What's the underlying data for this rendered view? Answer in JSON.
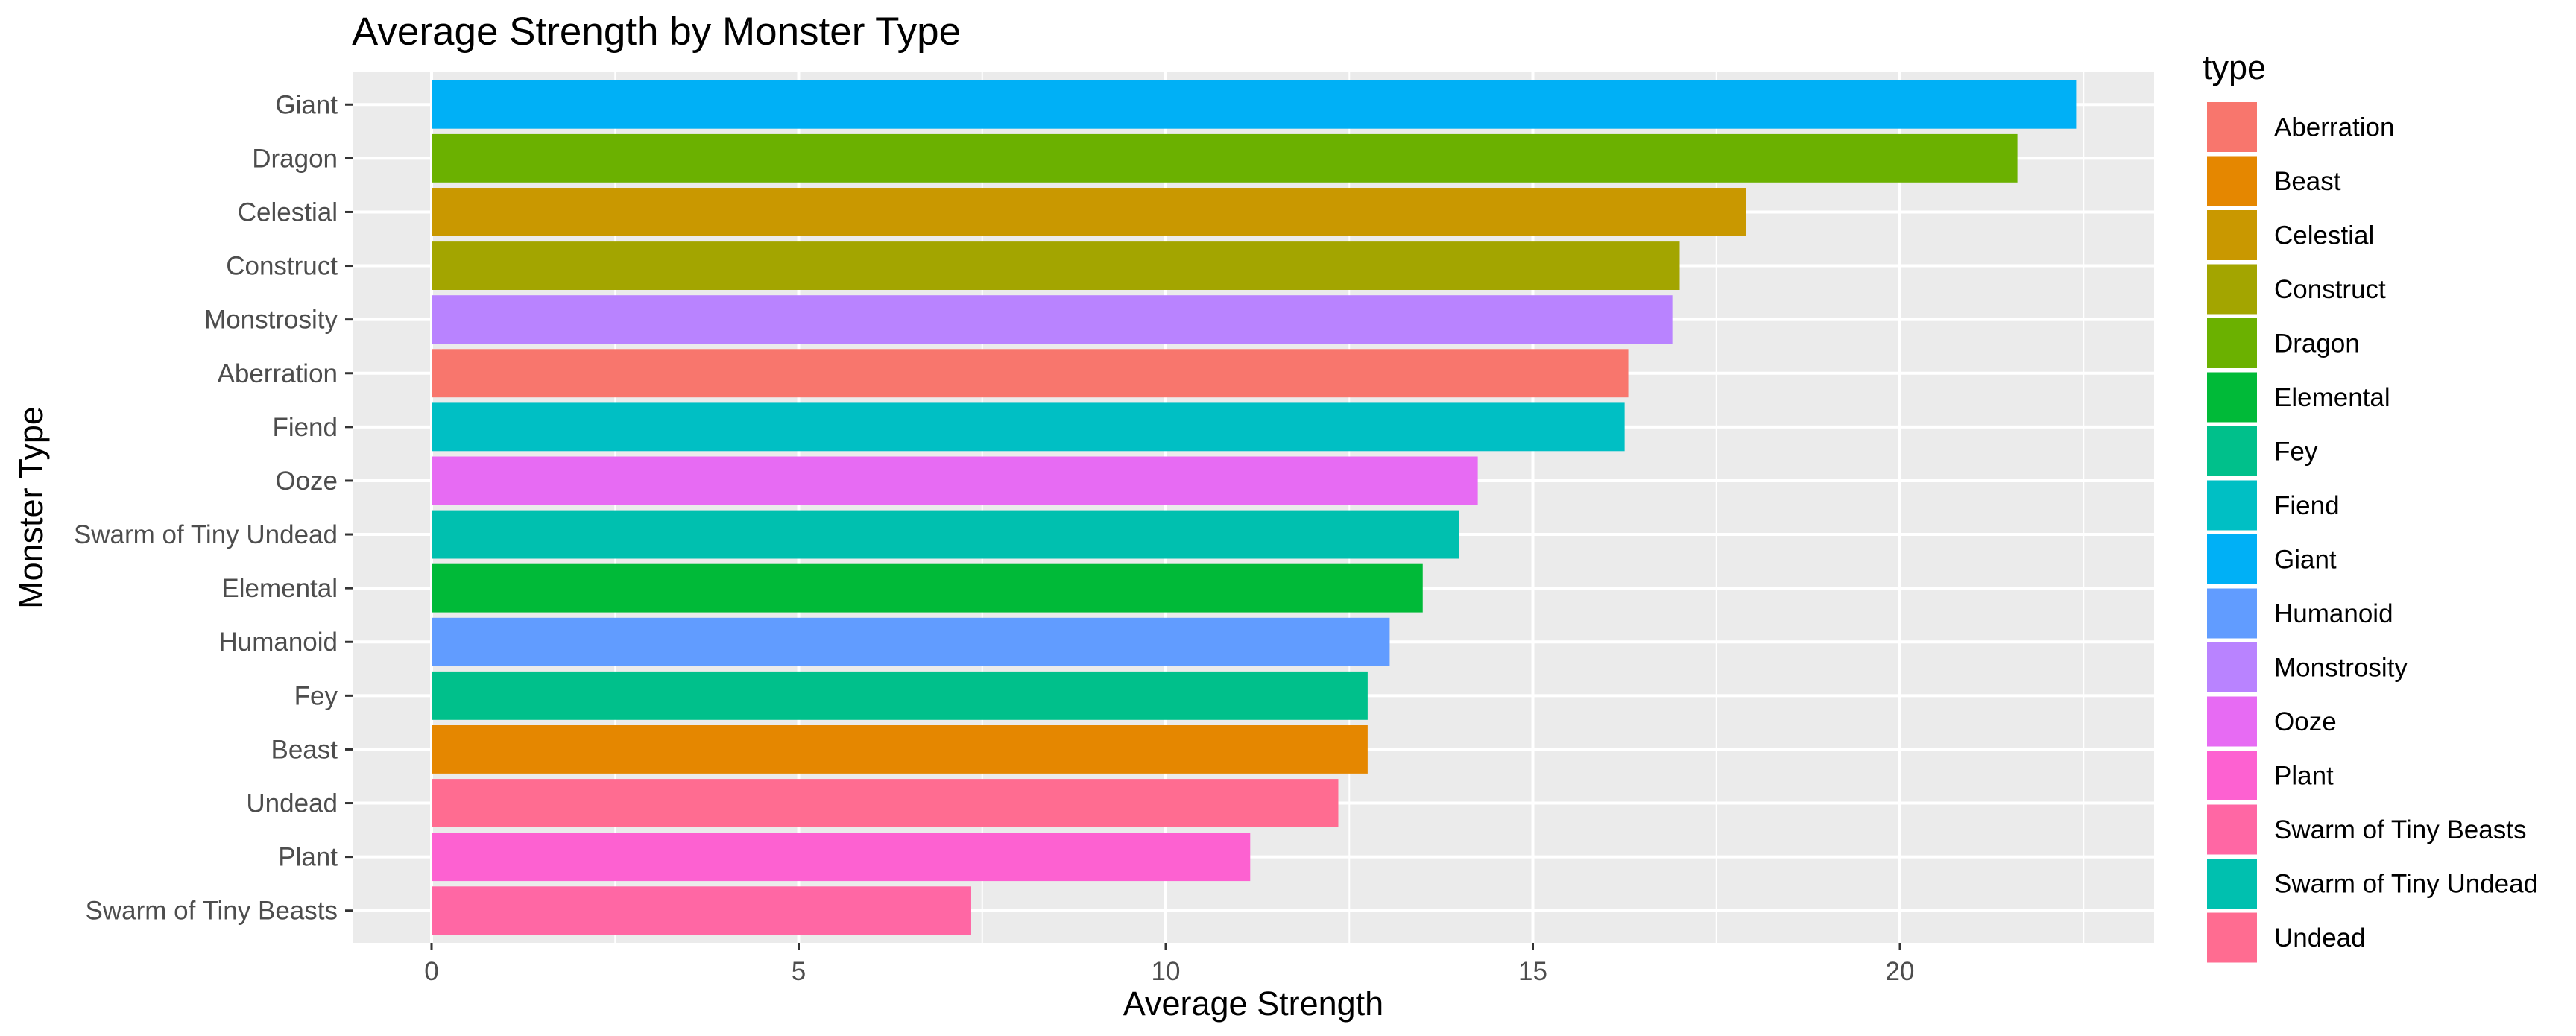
{
  "chart_data": {
    "type": "bar",
    "orientation": "horizontal",
    "title": "Average Strength by Monster Type",
    "xlabel": "Average Strength",
    "ylabel": "Monster Type",
    "xlim": [
      0,
      23.5
    ],
    "x_ticks": [
      0,
      5,
      10,
      15,
      20
    ],
    "grid": true,
    "legend_title": "type",
    "legend_position": "right",
    "categories": [
      "Giant",
      "Dragon",
      "Celestial",
      "Construct",
      "Monstrosity",
      "Aberration",
      "Fiend",
      "Ooze",
      "Swarm of Tiny Undead",
      "Elemental",
      "Humanoid",
      "Fey",
      "Beast",
      "Undead",
      "Plant",
      "Swarm of Tiny Beasts"
    ],
    "values": [
      22.4,
      21.6,
      17.9,
      17.0,
      16.9,
      16.3,
      16.25,
      14.25,
      14.0,
      13.5,
      13.05,
      12.75,
      12.75,
      12.35,
      11.15,
      7.35
    ],
    "legend": [
      {
        "label": "Aberration",
        "color": "#F8766D"
      },
      {
        "label": "Beast",
        "color": "#E58700"
      },
      {
        "label": "Celestial",
        "color": "#C99800"
      },
      {
        "label": "Construct",
        "color": "#A3A500"
      },
      {
        "label": "Dragon",
        "color": "#6BB100"
      },
      {
        "label": "Elemental",
        "color": "#00BA38"
      },
      {
        "label": "Fey",
        "color": "#00C08B"
      },
      {
        "label": "Fiend",
        "color": "#00BFC4"
      },
      {
        "label": "Giant",
        "color": "#00B0F6"
      },
      {
        "label": "Humanoid",
        "color": "#619CFF"
      },
      {
        "label": "Monstrosity",
        "color": "#B983FF"
      },
      {
        "label": "Ooze",
        "color": "#E76BF3"
      },
      {
        "label": "Plant",
        "color": "#FD61D1"
      },
      {
        "label": "Swarm of Tiny Beasts",
        "color": "#FF67A4"
      },
      {
        "label": "Swarm of Tiny Undead",
        "color": "#00C0AF"
      },
      {
        "label": "Undead",
        "color": "#FF6C91"
      }
    ]
  }
}
